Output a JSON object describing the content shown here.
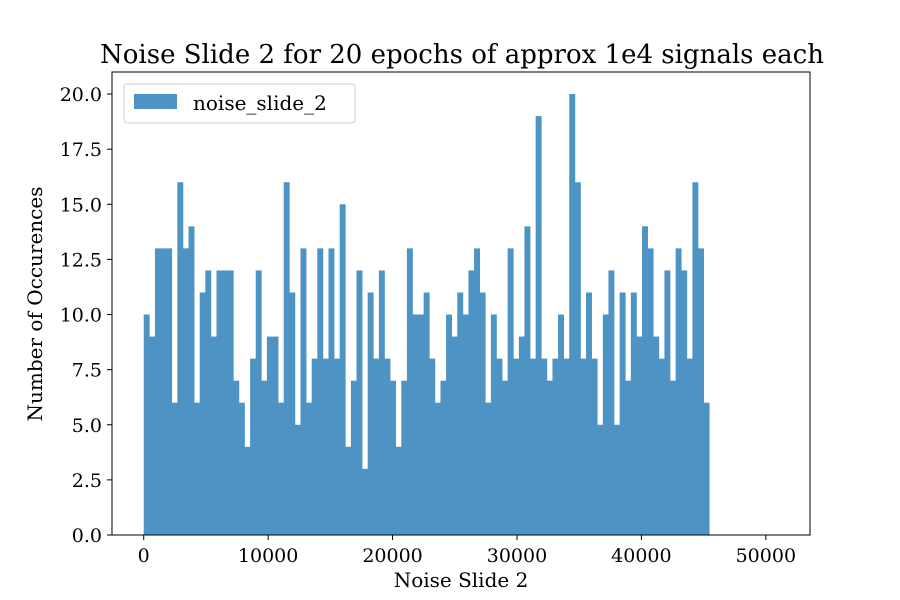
{
  "chart_data": {
    "type": "bar",
    "title": "Noise Slide 2 for 20 epochs of approx 1e4 signals each",
    "xlabel": "Noise Slide 2",
    "ylabel": "Number of Occurences",
    "xlim": [
      -2550,
      53550
    ],
    "ylim": [
      0,
      21
    ],
    "xticks": [
      0,
      10000,
      20000,
      30000,
      40000,
      50000
    ],
    "xtick_labels": [
      "0",
      "10000",
      "20000",
      "30000",
      "40000",
      "50000"
    ],
    "yticks": [
      0,
      2.5,
      5,
      7.5,
      10,
      12.5,
      15,
      17.5,
      20
    ],
    "ytick_labels": [
      "0.0",
      "2.5",
      "5.0",
      "7.5",
      "10.0",
      "12.5",
      "15.0",
      "17.5",
      "20.0"
    ],
    "legend_placement": "top-left",
    "grid": false,
    "series": [
      {
        "name": "noise_slide_2",
        "color": "#4d94c4",
        "bin_start": 0,
        "bin_width": 450,
        "values": [
          10,
          9,
          13,
          13,
          13,
          6,
          16,
          13,
          14,
          6,
          11,
          12,
          9,
          12,
          12,
          12,
          7,
          6,
          4,
          8,
          12,
          7,
          9,
          9,
          6,
          16,
          11,
          5,
          13,
          6,
          8,
          13,
          8,
          13,
          8,
          15,
          4,
          7,
          12,
          3,
          11,
          8,
          12,
          8,
          7,
          4,
          7,
          13,
          10,
          10,
          11,
          8,
          6,
          7,
          10,
          9,
          11,
          10,
          12,
          13,
          11,
          6,
          10,
          8,
          7,
          13,
          8,
          9,
          14,
          8,
          19,
          8,
          7,
          8,
          10,
          8,
          20,
          16,
          8,
          11,
          8,
          5,
          10,
          12,
          5,
          11,
          7,
          11,
          9,
          14,
          13,
          9,
          8,
          12,
          7,
          13,
          12,
          8,
          16,
          13,
          6
        ]
      }
    ]
  }
}
